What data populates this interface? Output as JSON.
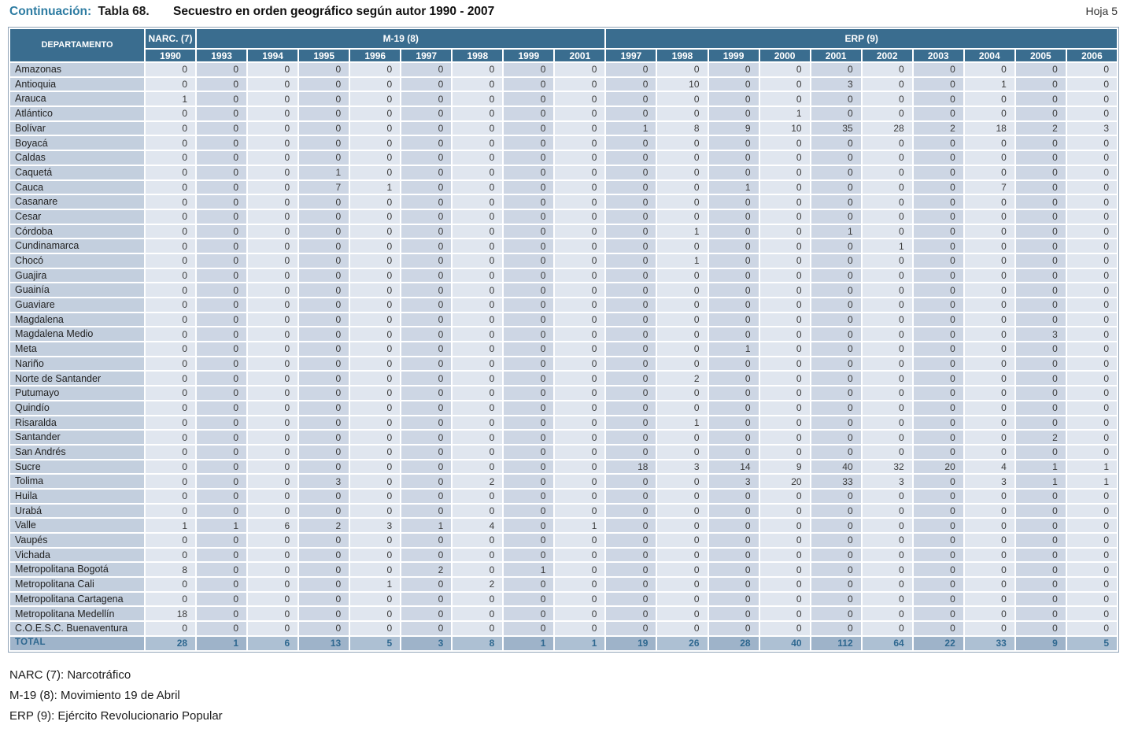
{
  "header": {
    "continuation": "Continuación:",
    "table_number": "Tabla 68.",
    "title": "Secuestro en orden geográfico según autor 1990 - 2007",
    "sheet": "Hoja 5"
  },
  "table": {
    "department_header": "DEPARTAMENTO",
    "groups": [
      {
        "label": "NARC. (7)",
        "years": [
          "1990"
        ]
      },
      {
        "label": "M-19 (8)",
        "years": [
          "1993",
          "1994",
          "1995",
          "1996",
          "1997",
          "1998",
          "1999",
          "2001"
        ]
      },
      {
        "label": "ERP (9)",
        "years": [
          "1997",
          "1998",
          "1999",
          "2000",
          "2001",
          "2002",
          "2003",
          "2004",
          "2005",
          "2006"
        ]
      }
    ],
    "rows": [
      {
        "name": "Amazonas",
        "values": [
          0,
          0,
          0,
          0,
          0,
          0,
          0,
          0,
          0,
          0,
          0,
          0,
          0,
          0,
          0,
          0,
          0,
          0,
          0
        ]
      },
      {
        "name": "Antioquia",
        "values": [
          0,
          0,
          0,
          0,
          0,
          0,
          0,
          0,
          0,
          0,
          10,
          0,
          0,
          3,
          0,
          0,
          1,
          0,
          0
        ]
      },
      {
        "name": "Arauca",
        "values": [
          1,
          0,
          0,
          0,
          0,
          0,
          0,
          0,
          0,
          0,
          0,
          0,
          0,
          0,
          0,
          0,
          0,
          0,
          0
        ]
      },
      {
        "name": "Atlántico",
        "values": [
          0,
          0,
          0,
          0,
          0,
          0,
          0,
          0,
          0,
          0,
          0,
          0,
          1,
          0,
          0,
          0,
          0,
          0,
          0
        ]
      },
      {
        "name": "Bolívar",
        "values": [
          0,
          0,
          0,
          0,
          0,
          0,
          0,
          0,
          0,
          1,
          8,
          9,
          10,
          35,
          28,
          2,
          18,
          2,
          3
        ]
      },
      {
        "name": "Boyacá",
        "values": [
          0,
          0,
          0,
          0,
          0,
          0,
          0,
          0,
          0,
          0,
          0,
          0,
          0,
          0,
          0,
          0,
          0,
          0,
          0
        ]
      },
      {
        "name": "Caldas",
        "values": [
          0,
          0,
          0,
          0,
          0,
          0,
          0,
          0,
          0,
          0,
          0,
          0,
          0,
          0,
          0,
          0,
          0,
          0,
          0
        ]
      },
      {
        "name": "Caquetá",
        "values": [
          0,
          0,
          0,
          1,
          0,
          0,
          0,
          0,
          0,
          0,
          0,
          0,
          0,
          0,
          0,
          0,
          0,
          0,
          0
        ]
      },
      {
        "name": "Cauca",
        "values": [
          0,
          0,
          0,
          7,
          1,
          0,
          0,
          0,
          0,
          0,
          0,
          1,
          0,
          0,
          0,
          0,
          7,
          0,
          0
        ]
      },
      {
        "name": "Casanare",
        "values": [
          0,
          0,
          0,
          0,
          0,
          0,
          0,
          0,
          0,
          0,
          0,
          0,
          0,
          0,
          0,
          0,
          0,
          0,
          0
        ]
      },
      {
        "name": "Cesar",
        "values": [
          0,
          0,
          0,
          0,
          0,
          0,
          0,
          0,
          0,
          0,
          0,
          0,
          0,
          0,
          0,
          0,
          0,
          0,
          0
        ]
      },
      {
        "name": "Córdoba",
        "values": [
          0,
          0,
          0,
          0,
          0,
          0,
          0,
          0,
          0,
          0,
          1,
          0,
          0,
          1,
          0,
          0,
          0,
          0,
          0
        ]
      },
      {
        "name": "Cundinamarca",
        "values": [
          0,
          0,
          0,
          0,
          0,
          0,
          0,
          0,
          0,
          0,
          0,
          0,
          0,
          0,
          1,
          0,
          0,
          0,
          0
        ]
      },
      {
        "name": "Chocó",
        "values": [
          0,
          0,
          0,
          0,
          0,
          0,
          0,
          0,
          0,
          0,
          1,
          0,
          0,
          0,
          0,
          0,
          0,
          0,
          0
        ]
      },
      {
        "name": "Guajira",
        "values": [
          0,
          0,
          0,
          0,
          0,
          0,
          0,
          0,
          0,
          0,
          0,
          0,
          0,
          0,
          0,
          0,
          0,
          0,
          0
        ]
      },
      {
        "name": "Guainía",
        "values": [
          0,
          0,
          0,
          0,
          0,
          0,
          0,
          0,
          0,
          0,
          0,
          0,
          0,
          0,
          0,
          0,
          0,
          0,
          0
        ]
      },
      {
        "name": "Guaviare",
        "values": [
          0,
          0,
          0,
          0,
          0,
          0,
          0,
          0,
          0,
          0,
          0,
          0,
          0,
          0,
          0,
          0,
          0,
          0,
          0
        ]
      },
      {
        "name": "Magdalena",
        "values": [
          0,
          0,
          0,
          0,
          0,
          0,
          0,
          0,
          0,
          0,
          0,
          0,
          0,
          0,
          0,
          0,
          0,
          0,
          0
        ]
      },
      {
        "name": "Magdalena Medio",
        "values": [
          0,
          0,
          0,
          0,
          0,
          0,
          0,
          0,
          0,
          0,
          0,
          0,
          0,
          0,
          0,
          0,
          0,
          3,
          0
        ]
      },
      {
        "name": "Meta",
        "values": [
          0,
          0,
          0,
          0,
          0,
          0,
          0,
          0,
          0,
          0,
          0,
          1,
          0,
          0,
          0,
          0,
          0,
          0,
          0
        ]
      },
      {
        "name": "Nariño",
        "values": [
          0,
          0,
          0,
          0,
          0,
          0,
          0,
          0,
          0,
          0,
          0,
          0,
          0,
          0,
          0,
          0,
          0,
          0,
          0
        ]
      },
      {
        "name": "Norte de Santander",
        "values": [
          0,
          0,
          0,
          0,
          0,
          0,
          0,
          0,
          0,
          0,
          2,
          0,
          0,
          0,
          0,
          0,
          0,
          0,
          0
        ]
      },
      {
        "name": "Putumayo",
        "values": [
          0,
          0,
          0,
          0,
          0,
          0,
          0,
          0,
          0,
          0,
          0,
          0,
          0,
          0,
          0,
          0,
          0,
          0,
          0
        ]
      },
      {
        "name": "Quindío",
        "values": [
          0,
          0,
          0,
          0,
          0,
          0,
          0,
          0,
          0,
          0,
          0,
          0,
          0,
          0,
          0,
          0,
          0,
          0,
          0
        ]
      },
      {
        "name": "Risaralda",
        "values": [
          0,
          0,
          0,
          0,
          0,
          0,
          0,
          0,
          0,
          0,
          1,
          0,
          0,
          0,
          0,
          0,
          0,
          0,
          0
        ]
      },
      {
        "name": "Santander",
        "values": [
          0,
          0,
          0,
          0,
          0,
          0,
          0,
          0,
          0,
          0,
          0,
          0,
          0,
          0,
          0,
          0,
          0,
          2,
          0
        ]
      },
      {
        "name": "San Andrés",
        "values": [
          0,
          0,
          0,
          0,
          0,
          0,
          0,
          0,
          0,
          0,
          0,
          0,
          0,
          0,
          0,
          0,
          0,
          0,
          0
        ]
      },
      {
        "name": "Sucre",
        "values": [
          0,
          0,
          0,
          0,
          0,
          0,
          0,
          0,
          0,
          18,
          3,
          14,
          9,
          40,
          32,
          20,
          4,
          1,
          1
        ]
      },
      {
        "name": "Tolima",
        "values": [
          0,
          0,
          0,
          3,
          0,
          0,
          2,
          0,
          0,
          0,
          0,
          3,
          20,
          33,
          3,
          0,
          3,
          1,
          1
        ]
      },
      {
        "name": "Huila",
        "values": [
          0,
          0,
          0,
          0,
          0,
          0,
          0,
          0,
          0,
          0,
          0,
          0,
          0,
          0,
          0,
          0,
          0,
          0,
          0
        ]
      },
      {
        "name": "Urabá",
        "values": [
          0,
          0,
          0,
          0,
          0,
          0,
          0,
          0,
          0,
          0,
          0,
          0,
          0,
          0,
          0,
          0,
          0,
          0,
          0
        ]
      },
      {
        "name": "Valle",
        "values": [
          1,
          1,
          6,
          2,
          3,
          1,
          4,
          0,
          1,
          0,
          0,
          0,
          0,
          0,
          0,
          0,
          0,
          0,
          0
        ]
      },
      {
        "name": "Vaupés",
        "values": [
          0,
          0,
          0,
          0,
          0,
          0,
          0,
          0,
          0,
          0,
          0,
          0,
          0,
          0,
          0,
          0,
          0,
          0,
          0
        ]
      },
      {
        "name": "Vichada",
        "values": [
          0,
          0,
          0,
          0,
          0,
          0,
          0,
          0,
          0,
          0,
          0,
          0,
          0,
          0,
          0,
          0,
          0,
          0,
          0
        ]
      },
      {
        "name": "Metropolitana Bogotá",
        "values": [
          8,
          0,
          0,
          0,
          0,
          2,
          0,
          1,
          0,
          0,
          0,
          0,
          0,
          0,
          0,
          0,
          0,
          0,
          0
        ]
      },
      {
        "name": "Metropolitana Cali",
        "values": [
          0,
          0,
          0,
          0,
          1,
          0,
          2,
          0,
          0,
          0,
          0,
          0,
          0,
          0,
          0,
          0,
          0,
          0,
          0
        ]
      },
      {
        "name": "Metropolitana Cartagena",
        "values": [
          0,
          0,
          0,
          0,
          0,
          0,
          0,
          0,
          0,
          0,
          0,
          0,
          0,
          0,
          0,
          0,
          0,
          0,
          0
        ]
      },
      {
        "name": "Metropolitana Medellín",
        "values": [
          18,
          0,
          0,
          0,
          0,
          0,
          0,
          0,
          0,
          0,
          0,
          0,
          0,
          0,
          0,
          0,
          0,
          0,
          0
        ]
      },
      {
        "name": "C.O.E.S.C. Buenaventura",
        "values": [
          0,
          0,
          0,
          0,
          0,
          0,
          0,
          0,
          0,
          0,
          0,
          0,
          0,
          0,
          0,
          0,
          0,
          0,
          0
        ]
      }
    ],
    "total": {
      "name": "TOTAL",
      "values": [
        28,
        1,
        6,
        13,
        5,
        3,
        8,
        1,
        1,
        19,
        26,
        28,
        40,
        112,
        64,
        22,
        33,
        9,
        5
      ]
    }
  },
  "footnotes": [
    "NARC (7): Narcotráfico",
    "M-19 (8): Movimiento 19 de Abril",
    "ERP (9): Ejército Revolucionario Popular"
  ],
  "colors": {
    "header_bg": "#3a6d8f",
    "header_text": "#ffffff",
    "dept_column_bg": "#c3cfde",
    "column_light": "#e0e6ef",
    "column_dark": "#cdd6e4",
    "total_row_light": "#adc0d3",
    "total_row_dark": "#9eb3c9",
    "total_text": "#2f6890",
    "title_accent": "#2e7ca2"
  }
}
